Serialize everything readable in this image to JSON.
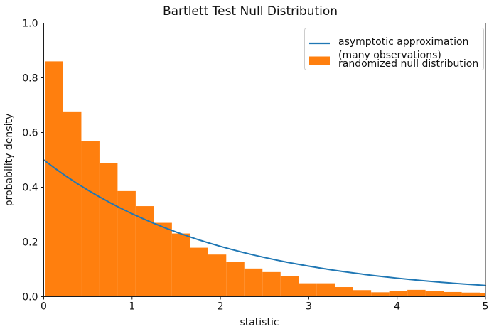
{
  "figure": {
    "background": "#ffffff"
  },
  "chart_data": {
    "type": "bar",
    "subtype": "histogram_with_density_line",
    "title": "Bartlett Test Null Distribution",
    "xlabel": "statistic",
    "ylabel": "probability density",
    "xlim": [
      0,
      5
    ],
    "ylim": [
      0,
      1.0
    ],
    "grid": false,
    "x_ticks": [
      0,
      1,
      2,
      3,
      4,
      5
    ],
    "x_tick_labels": [
      "0",
      "1",
      "2",
      "3",
      "4",
      "5"
    ],
    "y_ticks": [
      0.0,
      0.2,
      0.4,
      0.6,
      0.8,
      1.0
    ],
    "y_tick_labels": [
      "0.0",
      "0.2",
      "0.4",
      "0.6",
      "0.8",
      "1.0"
    ],
    "colors": {
      "histogram": "#ff7f0e",
      "line": "#1f77b4",
      "legend_border": "#cccccc"
    },
    "legend": {
      "position": "upper right",
      "entries": [
        {
          "handle": "line",
          "color": "#1f77b4",
          "label": "asymptotic approximation (many observations)",
          "label_lines": [
            "asymptotic approximation",
            "(many observations)"
          ]
        },
        {
          "handle": "patch",
          "color": "#ff7f0e",
          "label": "randomized null distribution",
          "label_lines": [
            "randomized null distribution"
          ]
        }
      ]
    },
    "series": [
      {
        "name": "randomized null distribution",
        "type": "histogram",
        "color": "#ff7f0e",
        "bin_start": 0.016,
        "bin_width": 0.205,
        "densities": [
          0.86,
          0.677,
          0.569,
          0.488,
          0.386,
          0.331,
          0.27,
          0.231,
          0.179,
          0.154,
          0.127,
          0.103,
          0.09,
          0.075,
          0.049,
          0.049,
          0.035,
          0.024,
          0.016,
          0.021,
          0.025,
          0.022,
          0.017,
          0.015,
          0.012
        ]
      },
      {
        "name": "asymptotic approximation (many observations)",
        "type": "line",
        "color": "#1f77b4",
        "formula": "chi2(df=2).pdf(x) = 0.5*exp(-x/2)",
        "x": [
          0,
          0.125,
          0.25,
          0.375,
          0.5,
          0.625,
          0.75,
          0.875,
          1,
          1.125,
          1.25,
          1.375,
          1.5,
          1.625,
          1.75,
          1.875,
          2,
          2.125,
          2.25,
          2.375,
          2.5,
          2.625,
          2.75,
          2.875,
          3,
          3.125,
          3.25,
          3.375,
          3.5,
          3.625,
          3.75,
          3.875,
          4,
          4.125,
          4.25,
          4.375,
          4.5,
          4.625,
          4.75,
          4.875,
          5
        ],
        "y": [
          0.5,
          0.4697,
          0.4412,
          0.4145,
          0.3894,
          0.3658,
          0.3437,
          0.3228,
          0.3033,
          0.2849,
          0.2676,
          0.2514,
          0.2362,
          0.2219,
          0.2084,
          0.1958,
          0.1839,
          0.1728,
          0.1623,
          0.1525,
          0.1433,
          0.1346,
          0.1264,
          0.1188,
          0.1116,
          0.1048,
          0.0985,
          0.0925,
          0.0869,
          0.0816,
          0.0767,
          0.072,
          0.0677,
          0.0636,
          0.0597,
          0.0561,
          0.0527,
          0.0495,
          0.0465,
          0.0437,
          0.041
        ]
      }
    ]
  }
}
